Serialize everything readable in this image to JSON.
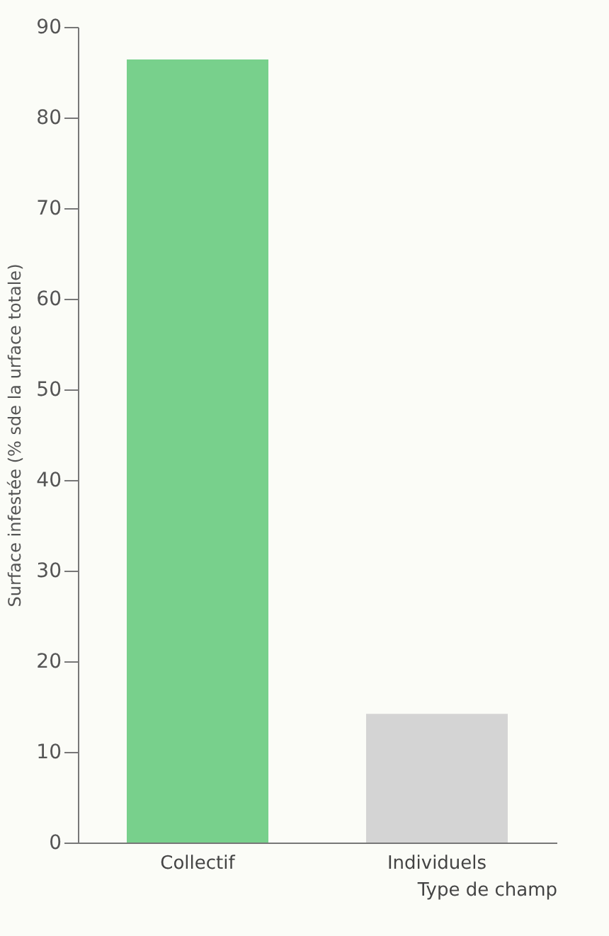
{
  "chart_data": {
    "type": "bar",
    "xlabel": "Type de champ",
    "ylabel": "Surface infestée (% sde la urface totale)",
    "categories": [
      "Collectif",
      "Individuels"
    ],
    "values": [
      86.4,
      14.2
    ],
    "colors": [
      "#78d08c",
      "#d4d4d4"
    ],
    "ylim": [
      0,
      90
    ],
    "yticks": [
      0,
      10,
      20,
      30,
      40,
      50,
      60,
      70,
      80,
      90
    ],
    "grid": false
  }
}
